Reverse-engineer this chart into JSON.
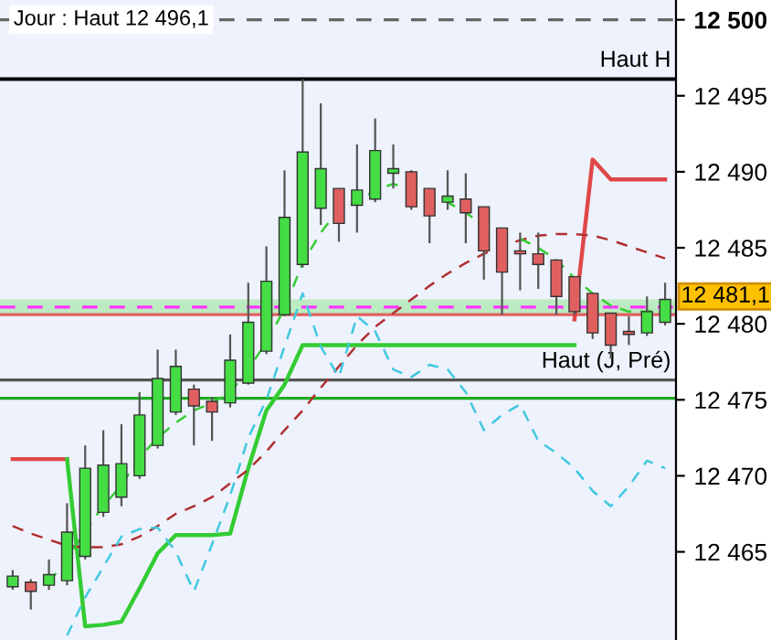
{
  "chart_data": {
    "type": "candlestick",
    "title": "Jour : Haut 12 496,1",
    "categories": [
      null,
      null,
      null,
      null,
      null,
      null,
      null,
      null,
      null,
      null,
      null,
      null,
      null,
      null,
      null,
      null,
      null,
      null,
      null,
      null,
      null,
      null,
      null,
      null,
      null,
      null,
      null,
      null,
      null,
      null,
      null,
      null,
      null,
      null,
      null,
      null,
      null
    ],
    "ohlc": [
      [
        12462.7,
        12463.8,
        12462.5,
        12463.4
      ],
      [
        12463.0,
        12463.2,
        12461.2,
        12462.4
      ],
      [
        12462.8,
        12464.5,
        12462.5,
        12463.5
      ],
      [
        12463.1,
        12468.2,
        12462.8,
        12466.3
      ],
      [
        12464.7,
        12472.0,
        12464.5,
        12470.5
      ],
      [
        12467.6,
        12473.0,
        12467.3,
        12470.7
      ],
      [
        12468.6,
        12473.4,
        12468.0,
        12470.8
      ],
      [
        12470.0,
        12475.5,
        12469.8,
        12474.0
      ],
      [
        12472.0,
        12478.3,
        12471.8,
        12476.4
      ],
      [
        12474.2,
        12478.3,
        12474.0,
        12477.2
      ],
      [
        12475.7,
        12476.0,
        12472.0,
        12474.6
      ],
      [
        12474.9,
        12475.2,
        12472.3,
        12474.2
      ],
      [
        12474.8,
        12479.3,
        12474.5,
        12477.6
      ],
      [
        12476.1,
        12482.7,
        12476.0,
        12480.1
      ],
      [
        12478.2,
        12485.1,
        12478.0,
        12482.8
      ],
      [
        12480.6,
        12490.1,
        12480.5,
        12487.0
      ],
      [
        12483.9,
        12496.1,
        12483.7,
        12491.3
      ],
      [
        12487.6,
        12494.5,
        12486.5,
        12490.2
      ],
      [
        12488.9,
        12488.9,
        12485.4,
        12486.6
      ],
      [
        12487.8,
        12491.8,
        12486.0,
        12488.8
      ],
      [
        12488.2,
        12493.5,
        12488.0,
        12491.4
      ],
      [
        12489.9,
        12491.8,
        12488.9,
        12490.2
      ],
      [
        12490.0,
        12490.1,
        12487.5,
        12487.7
      ],
      [
        12488.9,
        12488.9,
        12485.3,
        12487.1
      ],
      [
        12488.0,
        12490.1,
        12487.5,
        12488.4
      ],
      [
        12488.2,
        12489.9,
        12485.3,
        12487.3
      ],
      [
        12487.7,
        12487.7,
        12482.9,
        12484.8
      ],
      [
        12486.3,
        12486.3,
        12480.6,
        12483.4
      ],
      [
        12484.8,
        12486.0,
        12482.2,
        12484.6
      ],
      [
        12484.6,
        12486.0,
        12482.3,
        12483.9
      ],
      [
        12484.2,
        12484.2,
        12480.6,
        12481.8
      ],
      [
        12483.1,
        12483.1,
        12480.6,
        12480.8
      ],
      [
        12482.0,
        12482.0,
        12479.0,
        12479.4
      ],
      [
        12480.7,
        12480.7,
        12477.7,
        12478.6
      ],
      [
        12479.5,
        12480.5,
        12478.6,
        12479.3
      ],
      [
        12479.4,
        12481.8,
        12479.2,
        12480.8
      ],
      [
        12480.1,
        12482.7,
        12479.9,
        12481.6
      ]
    ],
    "colors": [
      "#44dd44",
      "#e06060",
      "#44dd44",
      "#44dd44",
      "#44dd44",
      "#44dd44",
      "#44dd44",
      "#44dd44",
      "#44dd44",
      "#44dd44",
      "#e06060",
      "#e06060",
      "#44dd44",
      "#44dd44",
      "#44dd44",
      "#44dd44",
      "#44dd44",
      "#44dd44",
      "#e06060",
      "#44dd44",
      "#44dd44",
      "#44dd44",
      "#e06060",
      "#e06060",
      "#44dd44",
      "#e06060",
      "#e06060",
      "#e06060",
      "#e06060",
      "#e06060",
      "#e06060",
      "#e06060",
      "#e06060",
      "#e06060",
      "#e06060",
      "#44dd44",
      "#44dd44"
    ],
    "series": [
      {
        "type": "line",
        "color": "#e04848",
        "line_style": "solid",
        "values": [
          12471.1,
          12471.1,
          12471.1,
          12471.1,
          null,
          null,
          null,
          null,
          null,
          null,
          null,
          null,
          null,
          null,
          null,
          null,
          null,
          null,
          null,
          null,
          null,
          null,
          null,
          null,
          null,
          null,
          null,
          null,
          null,
          null,
          null,
          12480.3,
          12490.8,
          12489.5,
          12489.5,
          12489.5,
          12489.5
        ]
      },
      {
        "type": "line",
        "color": "#33cc33",
        "line_style": "solid",
        "values": [
          null,
          null,
          null,
          12471.1,
          12460.1,
          12460.2,
          12460.4,
          12462.6,
          12464.9,
          12466.1,
          12466.1,
          12466.1,
          12466.2,
          12470.5,
          12474.3,
          12476.0,
          12478.6,
          12478.6,
          12478.6,
          12478.6,
          12478.6,
          12478.6,
          12478.6,
          12478.6,
          12478.6,
          12478.6,
          12478.6,
          12478.6,
          12478.6,
          12478.6,
          12478.6,
          12478.6,
          null,
          null,
          null,
          null,
          null
        ]
      },
      {
        "type": "line",
        "color": "#b03030",
        "line_style": "dashed",
        "values": [
          12466.7,
          12466.2,
          12465.8,
          12465.4,
          12465.3,
          12465.3,
          12465.5,
          12466.0,
          12466.7,
          12467.5,
          12468.0,
          12468.6,
          12469.5,
          12470.4,
          12471.6,
          12473.0,
          12474.3,
          12475.8,
          12477.2,
          12478.6,
          12479.8,
          12480.7,
          12481.6,
          12482.5,
          12483.3,
          12484.0,
          12484.6,
          12485.1,
          12485.5,
          12485.8,
          12485.9,
          12485.9,
          12485.8,
          12485.5,
          12485.1,
          12484.7,
          12484.3
        ]
      },
      {
        "type": "line",
        "color": "#33cc33",
        "line_style": "dashed",
        "values": [
          null,
          null,
          12463.0,
          12464.5,
          12466.4,
          12468.0,
          12469.4,
          12471.2,
          12472.5,
          12473.5,
          12474.3,
          12474.8,
          12475.5,
          12477.0,
          12478.8,
          12481.0,
          12484.0,
          12486.0,
          12487.5,
          12488.0,
          12488.8,
          12489.2,
          12488.8,
          12488.2,
          12488.0,
          12487.3,
          12486.5,
          null,
          12485.6,
          12485.0,
          12484.2,
          12483.0,
          12482.0,
          12481.2,
          12480.8,
          12480.8,
          12481.0
        ]
      },
      {
        "type": "line",
        "color": "#40c8e0",
        "line_style": "dashed",
        "values": [
          null,
          null,
          null,
          12459.5,
          12462.0,
          12464.0,
          12466.0,
          12466.5,
          12466.6,
          12465.0,
          12462.4,
          12465.5,
          12468.7,
          12472.5,
          12475.0,
          12478.5,
          12482.0,
          12478.5,
          12476.5,
          12480.5,
          12479.5,
          12477.0,
          12476.5,
          12477.3,
          12477.0,
          12475.5,
          12473.0,
          12474.0,
          12474.7,
          12472.3,
          12471.5,
          12470.5,
          12469.0,
          12468.0,
          12469.3,
          12471.0,
          12470.5
        ]
      }
    ],
    "ylim": [
      12459.2,
      12501.3
    ],
    "yticks": [
      {
        "value": 12500,
        "label": "12 500"
      },
      {
        "value": 12495,
        "label": "12 495"
      },
      {
        "value": 12490,
        "label": "12 490"
      },
      {
        "value": 12485,
        "label": "12 485"
      },
      {
        "value": 12480,
        "label": "12 480"
      },
      {
        "value": 12475,
        "label": "12 475"
      },
      {
        "value": 12470,
        "label": "12 470"
      },
      {
        "value": 12465,
        "label": "12 465"
      }
    ],
    "ref_lines": [
      {
        "axis": "y",
        "value": 12500,
        "color": "#666666",
        "line_style": "dashed"
      },
      {
        "axis": "y",
        "value": 12496.1,
        "label": "Haut H",
        "color": "#000000",
        "line_style": "solid"
      },
      {
        "axis": "y",
        "value": 12481.1,
        "label": "12 481,1",
        "color": "#ff33ff",
        "line_style": "dashed"
      },
      {
        "axis": "y",
        "value": 12480.6,
        "color": "#e06060",
        "line_style": "solid"
      },
      {
        "axis": "y",
        "value": 12476.3,
        "label": "Haut (J, Pré)",
        "color": "#555555",
        "line_style": "solid"
      },
      {
        "axis": "y",
        "value": 12475.1,
        "color": "#22aa22",
        "line_style": "solid"
      }
    ],
    "bands": [
      {
        "axis": "y",
        "from": 12480.6,
        "to": 12481.6,
        "color": "#a8e8a8"
      }
    ],
    "grid": false,
    "legend": false,
    "tick_labels": "y"
  }
}
